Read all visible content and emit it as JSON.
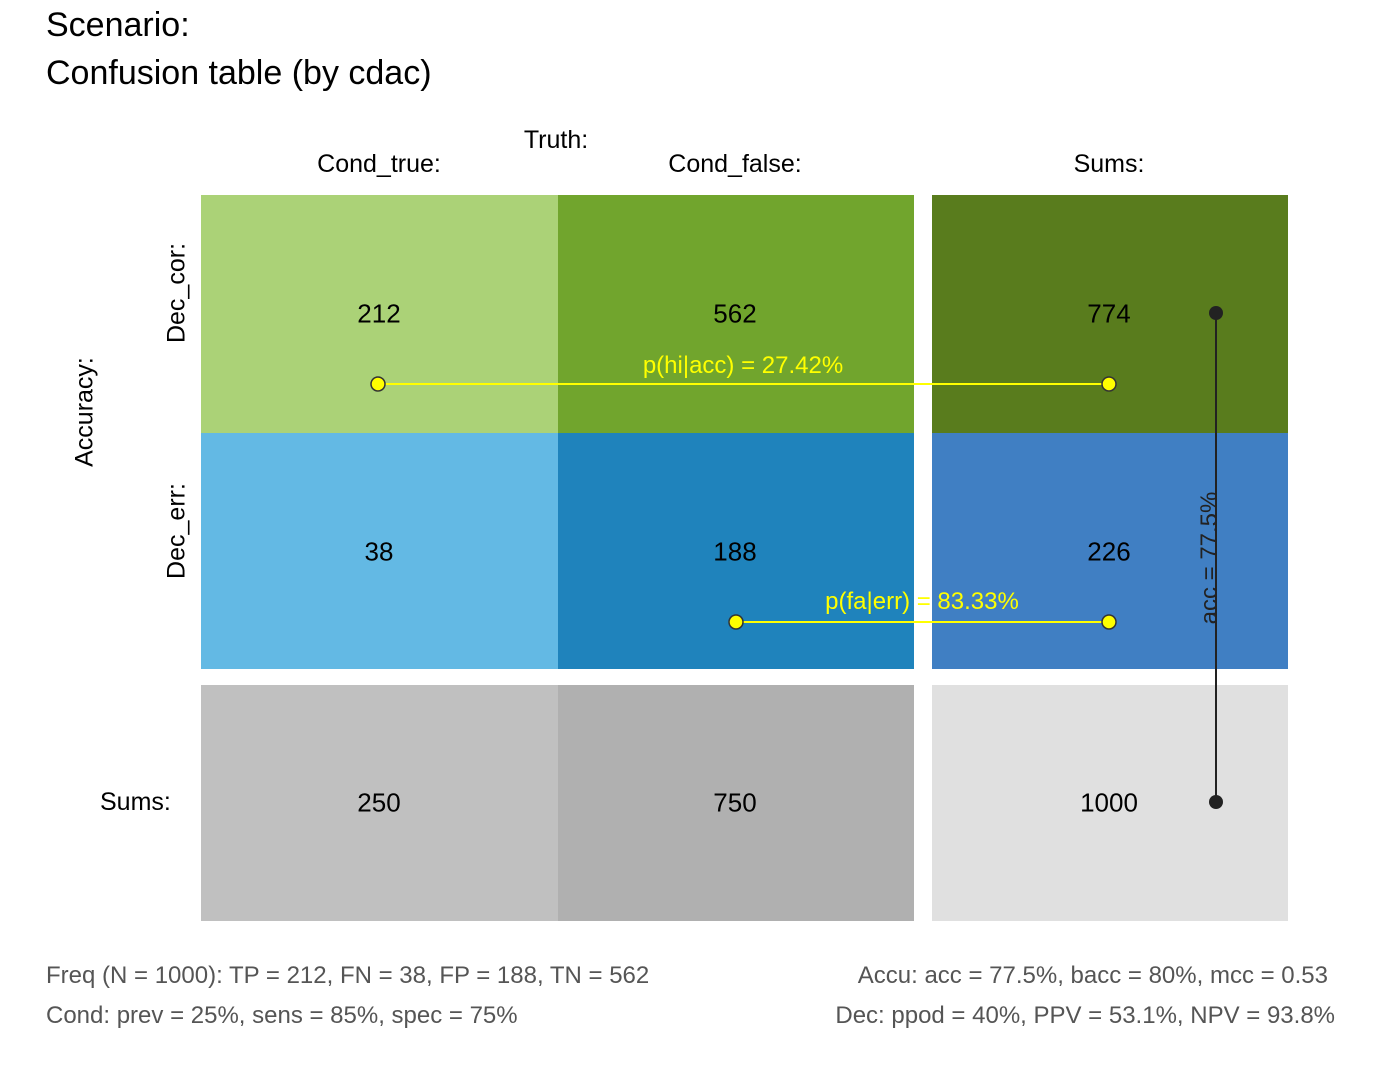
{
  "title": {
    "line1": "Scenario:",
    "line2": "Confusion table (by cdac)"
  },
  "axis": {
    "truth_label": "Truth:",
    "accuracy_label": "Accuracy:"
  },
  "columns": {
    "cond_true": "Cond_true:",
    "cond_false": "Cond_false:",
    "sums": "Sums:"
  },
  "rows": {
    "dec_cor": "Dec_cor:",
    "dec_err": "Dec_err:",
    "sums": "Sums:"
  },
  "colors": {
    "dec_cor_true": "#abd277",
    "dec_cor_false": "#71a52d",
    "dec_cor_sum": "#597c1d",
    "dec_err_true": "#63b9e4",
    "dec_err_false": "#1f83bc",
    "dec_err_sum": "#407fc3",
    "sum_true": "#c0c0c0",
    "sum_false": "#b0b0b0",
    "sum_total": "#e0e0e0",
    "highlight": "#ffff00",
    "acc_line": "#222222"
  },
  "chart_data": {
    "type": "table",
    "columns": [
      "Cond_true:",
      "Cond_false:",
      "Sums:"
    ],
    "rows": [
      "Dec_cor:",
      "Dec_err:",
      "Sums:"
    ],
    "cells": [
      [
        212,
        562,
        774
      ],
      [
        38,
        188,
        226
      ],
      [
        250,
        750,
        1000
      ]
    ],
    "annotations": {
      "p_hi_acc": "p(hi|acc) = 27.42%",
      "p_fa_err": "p(fa|err) = 83.33%",
      "acc": "acc = 77.5%"
    }
  },
  "footer": {
    "freq": "Freq (N = 1000):  TP = 212, FN = 38, FP = 188, TN = 562",
    "accu": "Accu:  acc = 77.5%, bacc = 80%, mcc = 0.53",
    "cond": "Cond:  prev = 25%, sens = 85%, spec = 75%",
    "dec": "Dec:  ppod = 40%, PPV = 53.1%, NPV = 93.8%"
  }
}
